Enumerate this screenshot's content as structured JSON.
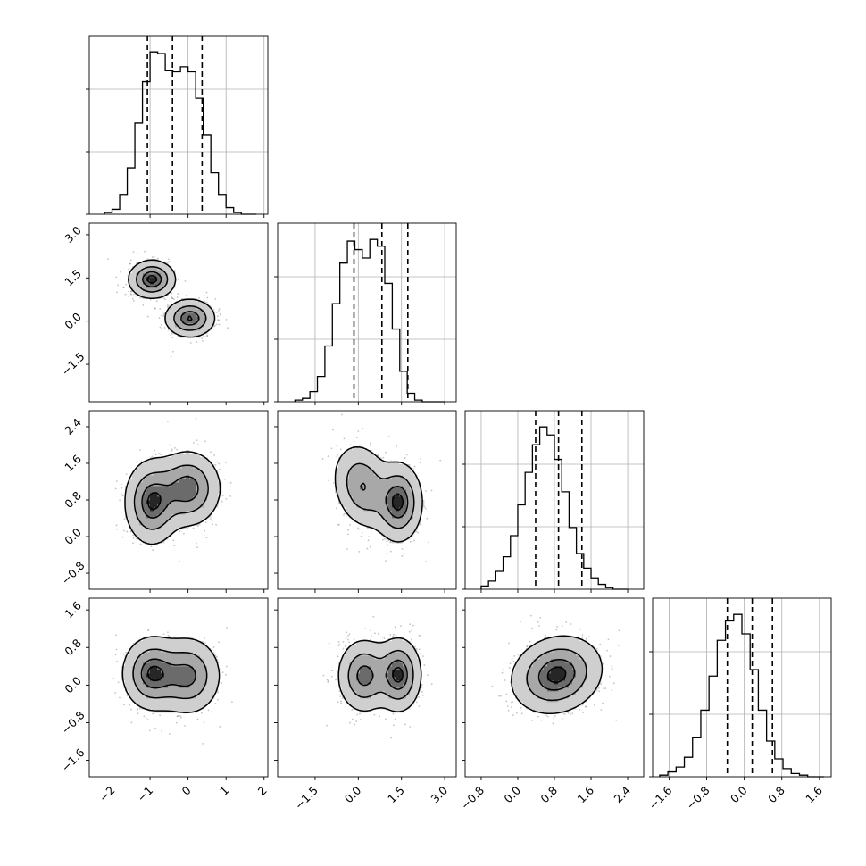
{
  "chart_data": {
    "type": "corner",
    "n_params": 4,
    "quantiles": [
      0.16,
      0.5,
      0.84
    ],
    "params": [
      {
        "index": 0,
        "range": [
          -2.6,
          2.1
        ],
        "ticks": [
          -2,
          -1,
          0,
          1,
          2
        ],
        "tick_labels": [
          "−2",
          "−1",
          "0",
          "1",
          "2"
        ],
        "quantile_values": [
          -1.07,
          -0.41,
          0.37
        ]
      },
      {
        "index": 1,
        "range": [
          -2.8,
          3.4
        ],
        "ticks": [
          -1.5,
          0.0,
          1.5,
          3.0
        ],
        "tick_labels": [
          "−1.5",
          "0.0",
          "1.5",
          "3.0"
        ],
        "quantile_values": [
          -0.15,
          0.82,
          1.72
        ]
      },
      {
        "index": 2,
        "range": [
          -1.15,
          2.75
        ],
        "ticks": [
          -0.8,
          0.0,
          0.8,
          1.6,
          2.4
        ],
        "tick_labels": [
          "−0.8",
          "0.0",
          "0.8",
          "1.6",
          "2.4"
        ],
        "quantile_values": [
          0.39,
          0.89,
          1.4
        ]
      },
      {
        "index": 3,
        "range": [
          -1.95,
          1.85
        ],
        "ticks": [
          -1.6,
          -0.8,
          0.0,
          0.8,
          1.6
        ],
        "tick_labels": [
          "−1.6",
          "−0.8",
          "0.0",
          "0.8",
          "1.6"
        ],
        "quantile_values": [
          -0.36,
          0.17,
          0.6
        ]
      }
    ],
    "histograms": [
      {
        "param": 0,
        "bin_edges_range": [
          -2.2,
          1.8
        ],
        "counts": [
          1,
          3,
          12,
          28,
          55,
          80,
          98,
          97,
          87,
          86,
          89,
          86,
          70,
          48,
          25,
          12,
          4,
          1,
          0,
          0
        ]
      },
      {
        "param": 1,
        "bin_edges_range": [
          -2.2,
          3.0
        ],
        "counts": [
          1,
          2,
          6,
          15,
          33,
          58,
          82,
          95,
          90,
          85,
          96,
          92,
          70,
          43,
          18,
          5,
          1,
          0,
          0,
          0
        ]
      },
      {
        "param": 2,
        "bin_edges_range": [
          -0.8,
          2.4
        ],
        "counts": [
          2,
          5,
          11,
          20,
          33,
          52,
          72,
          89,
          100,
          95,
          80,
          60,
          38,
          22,
          13,
          7,
          3,
          1,
          0,
          0
        ]
      },
      {
        "param": 3,
        "bin_edges_range": [
          -1.8,
          1.7
        ],
        "counts": [
          1,
          3,
          6,
          12,
          24,
          41,
          62,
          84,
          96,
          100,
          88,
          66,
          41,
          22,
          11,
          5,
          2,
          1,
          0,
          0
        ]
      }
    ],
    "pairs": [
      {
        "row": 1,
        "col": 0,
        "modes": [
          [
            -0.95,
            1.45,
            0.3,
            0.32,
            0
          ],
          [
            0.05,
            0.1,
            0.32,
            0.32,
            0
          ]
        ],
        "weights": [
          0.5,
          0.5
        ]
      },
      {
        "row": 2,
        "col": 0,
        "modes": [
          [
            -0.95,
            0.75,
            0.35,
            0.45,
            0
          ],
          [
            0.0,
            1.05,
            0.42,
            0.4,
            0
          ]
        ],
        "weights": [
          0.5,
          0.5
        ]
      },
      {
        "row": 2,
        "col": 1,
        "modes": [
          [
            0.15,
            1.1,
            0.5,
            0.45,
            -0.2
          ],
          [
            1.4,
            0.75,
            0.4,
            0.42,
            0
          ]
        ],
        "weights": [
          0.5,
          0.5
        ]
      },
      {
        "row": 3,
        "col": 0,
        "modes": [
          [
            -0.95,
            0.25,
            0.38,
            0.38,
            0
          ],
          [
            0.0,
            0.2,
            0.42,
            0.4,
            0
          ]
        ],
        "weights": [
          0.5,
          0.5
        ]
      },
      {
        "row": 3,
        "col": 1,
        "modes": [
          [
            0.2,
            0.2,
            0.45,
            0.38,
            0
          ],
          [
            1.4,
            0.22,
            0.38,
            0.38,
            0
          ]
        ],
        "weights": [
          0.5,
          0.5
        ]
      },
      {
        "row": 3,
        "col": 2,
        "modes": [
          [
            0.85,
            0.22,
            0.48,
            0.4,
            0.15
          ]
        ],
        "weights": [
          1.0
        ]
      }
    ],
    "grid": true,
    "colors": {
      "points": "#555555",
      "contour_line": "#000000",
      "fill_dark": "#262626",
      "fill_light": "#f2f2f2"
    }
  }
}
